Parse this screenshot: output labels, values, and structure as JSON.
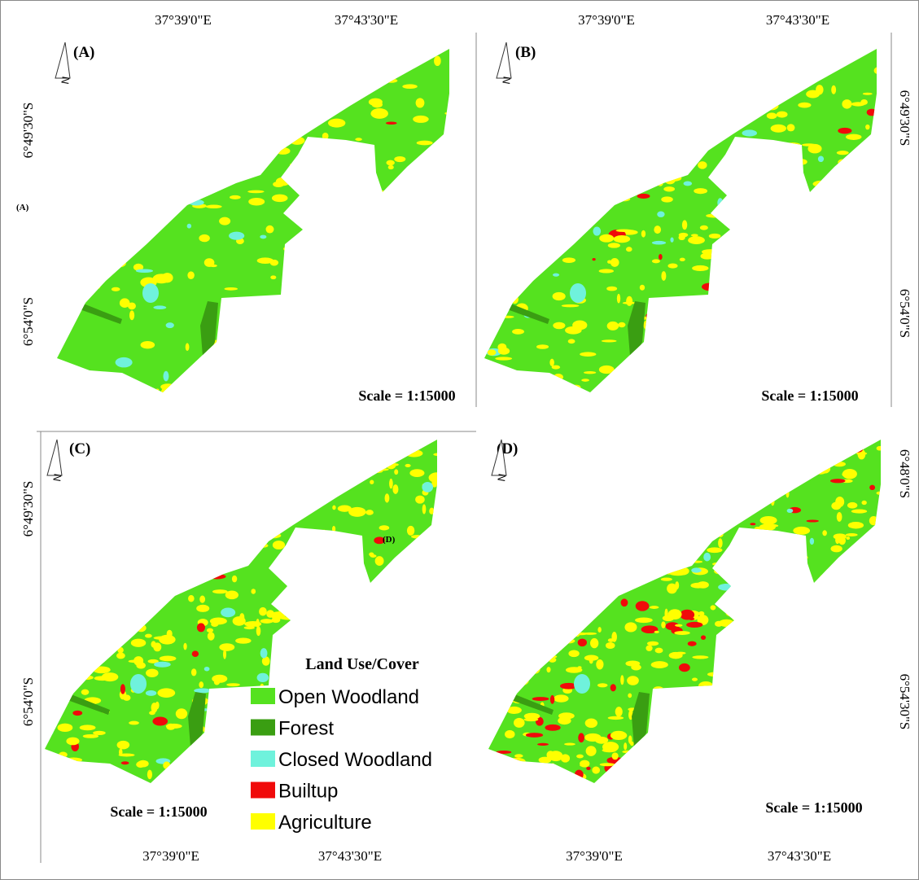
{
  "panels": [
    {
      "label": "(A)",
      "north": "N",
      "scale": "Scale = 1:15000",
      "lon_labels": [
        "37°39'0\"E",
        "37°43'30\"E"
      ],
      "lat_labels": [
        "6°49'30\"S",
        "6°54'0\"S"
      ]
    },
    {
      "label": "(B)",
      "north": "N",
      "scale": "Scale = 1:15000",
      "lon_labels": [
        "37°39'0\"E",
        "37°43'30\"E"
      ],
      "lat_labels": [
        "6°49'30\"S",
        "6°54'0\"S"
      ]
    },
    {
      "label": "(C)",
      "north": "N",
      "scale": "Scale = 1:15000",
      "lon_labels": [
        "37°39'0\"E",
        "37°43'30\"E"
      ],
      "lat_labels": [
        "6°49'30\"S",
        "6°54'0\"S"
      ]
    },
    {
      "label": "(D)",
      "north": "N",
      "scale": "Scale = 1:15000",
      "lon_labels": [
        "37°39'0\"E",
        "37°43'30\"E"
      ],
      "lat_labels": [
        "6°48'0\"S",
        "6°54'30\"S"
      ]
    }
  ],
  "stray_labels": [
    "(A)",
    "(D)"
  ],
  "legend": {
    "title": "Land Use/Cover",
    "items": [
      {
        "name": "Open Woodland",
        "color": "#55e21f"
      },
      {
        "name": "Forest",
        "color": "#3a9e12"
      },
      {
        "name": "Closed Woodland",
        "color": "#6ff2dc"
      },
      {
        "name": "Builtup",
        "color": "#f00a0a"
      },
      {
        "name": "Agriculture",
        "color": "#ffff00"
      }
    ]
  }
}
